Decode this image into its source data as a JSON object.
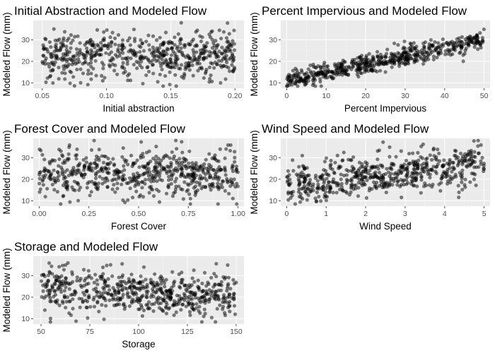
{
  "chart_data": [
    {
      "type": "scatter",
      "title": "Initial Abstraction and Modeled Flow",
      "xlabel": "Initial abstraction",
      "ylabel": "Modeled Flow (mm)",
      "xlim": [
        0.043,
        0.207
      ],
      "ylim": [
        7.5,
        39
      ],
      "xticks": [
        0.05,
        0.1,
        0.15,
        0.2
      ],
      "xtick_labels": [
        "0.05",
        "0.10",
        "0.15",
        "0.20"
      ],
      "yticks": [
        10,
        20,
        30
      ],
      "ytick_labels": [
        "10",
        "20",
        "30"
      ],
      "grid": true,
      "trend": {
        "type": "none",
        "x_range": [
          0.05,
          0.2
        ],
        "y_center": 22.5,
        "y_spread": 6.5,
        "y_min": 8.5,
        "y_max": 38
      }
    },
    {
      "type": "scatter",
      "title": "Percent Impervious and Modeled Flow",
      "xlabel": "Percent Impervious",
      "ylabel": "Modeled Flow (mm)",
      "xlim": [
        -1.5,
        51.5
      ],
      "ylim": [
        7.5,
        39
      ],
      "xticks": [
        0,
        10,
        20,
        30,
        40,
        50
      ],
      "xtick_labels": [
        "0",
        "10",
        "20",
        "30",
        "40",
        "50"
      ],
      "yticks": [
        10,
        20,
        30
      ],
      "ytick_labels": [
        "10",
        "20",
        "30"
      ],
      "grid": true,
      "trend": {
        "type": "linear",
        "x_range": [
          0,
          50
        ],
        "y_at_xmin": 11,
        "y_at_xmax": 30,
        "noise": 2.6,
        "y_min": 8.5,
        "y_max": 38
      }
    },
    {
      "type": "scatter",
      "title": "Forest Cover and Modeled Flow",
      "xlabel": "Forest Cover",
      "ylabel": "Modeled Flow (mm)",
      "xlim": [
        -0.03,
        1.03
      ],
      "ylim": [
        7.5,
        39
      ],
      "xticks": [
        0,
        0.25,
        0.5,
        0.75,
        1
      ],
      "xtick_labels": [
        "0.00",
        "0.25",
        "0.50",
        "0.75",
        "1.00"
      ],
      "yticks": [
        10,
        20,
        30
      ],
      "ytick_labels": [
        "10",
        "20",
        "30"
      ],
      "grid": true,
      "trend": {
        "type": "linear",
        "x_range": [
          0,
          1
        ],
        "y_at_xmin": 24,
        "y_at_xmax": 21,
        "noise": 6.5,
        "y_min": 8.5,
        "y_max": 38
      }
    },
    {
      "type": "scatter",
      "title": "Wind Speed and Modeled Flow",
      "xlabel": "Wind Speed",
      "ylabel": "Modeled Flow (mm)",
      "xlim": [
        -0.15,
        5.15
      ],
      "ylim": [
        7.5,
        39
      ],
      "xticks": [
        0,
        1,
        2,
        3,
        4,
        5
      ],
      "xtick_labels": [
        "0",
        "1",
        "2",
        "3",
        "4",
        "5"
      ],
      "yticks": [
        10,
        20,
        30
      ],
      "ytick_labels": [
        "10",
        "20",
        "30"
      ],
      "grid": true,
      "trend": {
        "type": "linear",
        "x_range": [
          0,
          5
        ],
        "y_at_xmin": 17,
        "y_at_xmax": 27,
        "noise": 5.5,
        "y_min": 8.5,
        "y_max": 38
      }
    },
    {
      "type": "scatter",
      "title": "Storage and Modeled Flow",
      "xlabel": "Storage",
      "ylabel": "Modeled Flow (mm)",
      "xlim": [
        46,
        154
      ],
      "ylim": [
        7.5,
        39
      ],
      "xticks": [
        50,
        75,
        100,
        125,
        150
      ],
      "xtick_labels": [
        "50",
        "75",
        "100",
        "125",
        "150"
      ],
      "yticks": [
        10,
        20,
        30
      ],
      "ytick_labels": [
        "10",
        "20",
        "30"
      ],
      "grid": true,
      "trend": {
        "type": "linear",
        "x_range": [
          50,
          150
        ],
        "y_at_xmin": 25,
        "y_at_xmax": 20,
        "noise": 6,
        "y_min": 8.5,
        "y_max": 38
      }
    }
  ],
  "style": {
    "panel_background": "#ebebeb",
    "grid_color": "#ffffff",
    "point_color": "#000000",
    "point_opacity": 0.5,
    "tick_color": "#4d4d4d"
  }
}
